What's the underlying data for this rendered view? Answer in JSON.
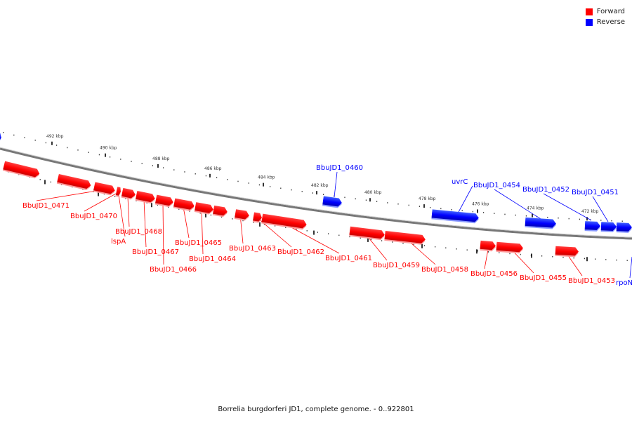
{
  "legend": {
    "forward_label": "Forward",
    "reverse_label": "Reverse"
  },
  "colors": {
    "forward": "#ff0000",
    "reverse": "#0000ff",
    "backbone": "#777777",
    "tick": "#000000"
  },
  "caption": "Borrelia burgdorferi JD1, complete genome. - 0..922801",
  "ticks": [
    "492 kbp",
    "490 kbp",
    "488 kbp",
    "486 kbp",
    "484 kbp",
    "482 kbp",
    "480 kbp",
    "478 kbp",
    "476 kbp",
    "474 kbp",
    "472 kbp"
  ],
  "genes": [
    {
      "label": "BbuJD1_0471",
      "strand": "forward"
    },
    {
      "label": "BbuJD1_0470",
      "strand": "forward"
    },
    {
      "label": "BbuJD1_0468",
      "strand": "forward"
    },
    {
      "label": "lspA",
      "strand": "forward"
    },
    {
      "label": "BbuJD1_0467",
      "strand": "forward"
    },
    {
      "label": "BbuJD1_0466",
      "strand": "forward"
    },
    {
      "label": "BbuJD1_0465",
      "strand": "forward"
    },
    {
      "label": "BbuJD1_0464",
      "strand": "forward"
    },
    {
      "label": "BbuJD1_0463",
      "strand": "forward"
    },
    {
      "label": "BbuJD1_0462",
      "strand": "forward"
    },
    {
      "label": "BbuJD1_0461",
      "strand": "forward"
    },
    {
      "label": "BbuJD1_0460",
      "strand": "reverse"
    },
    {
      "label": "BbuJD1_0459",
      "strand": "forward"
    },
    {
      "label": "BbuJD1_0458",
      "strand": "forward"
    },
    {
      "label": "uvrC",
      "strand": "reverse"
    },
    {
      "label": "BbuJD1_0456",
      "strand": "forward"
    },
    {
      "label": "BbuJD1_0455",
      "strand": "forward"
    },
    {
      "label": "BbuJD1_0454",
      "strand": "reverse"
    },
    {
      "label": "BbuJD1_0452",
      "strand": "reverse"
    },
    {
      "label": "BbuJD1_0453",
      "strand": "forward"
    },
    {
      "label": "BbuJD1_0451",
      "strand": "reverse"
    },
    {
      "label": "rpoN",
      "strand": "reverse"
    }
  ]
}
